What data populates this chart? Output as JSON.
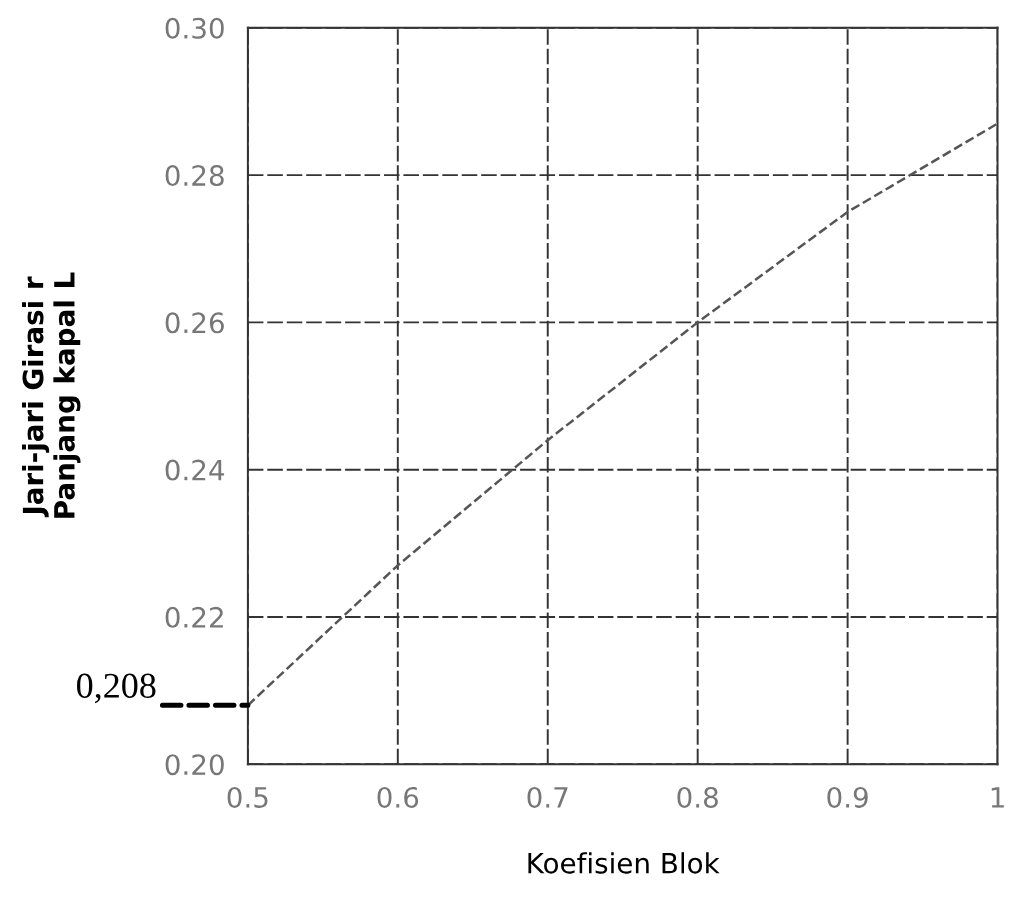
{
  "chart_data": {
    "type": "line",
    "xlabel": "Koefisien Blok",
    "ylabel": "Jari-jari Girasi r\nPanjang kapal L",
    "x": [
      0.5,
      0.6,
      0.7,
      0.8,
      0.9,
      1.0
    ],
    "series": [
      {
        "color": "#555555",
        "values": [
          0.208,
          0.227,
          0.244,
          0.26,
          0.275,
          0.287
        ]
      }
    ],
    "xlim": [
      0.5,
      1.0
    ],
    "xticks": [
      0.5,
      0.6,
      0.7,
      0.8,
      0.9,
      1
    ],
    "ylim": [
      0.2,
      0.3
    ],
    "yticks": [
      {
        "value": 0.2,
        "label": "0.20"
      },
      0.22,
      0.24,
      0.26,
      0.28,
      {
        "value": 0.3,
        "label": "0.30"
      }
    ],
    "annotations": [
      {
        "text": "0,208",
        "x": 0.5,
        "y": 0.208
      }
    ],
    "grid": true,
    "line_style": "dashed",
    "marker": "none"
  }
}
